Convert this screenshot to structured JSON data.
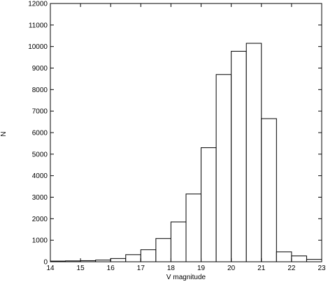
{
  "chart_data": {
    "type": "bar",
    "title": "",
    "xlabel": "V magnitude",
    "ylabel": "N",
    "xlim": [
      14,
      23
    ],
    "ylim": [
      0,
      12000
    ],
    "grid": false,
    "bin_width": 0.5,
    "bins": [
      {
        "x0": 14.0,
        "value": 30
      },
      {
        "x0": 14.5,
        "value": 40
      },
      {
        "x0": 15.0,
        "value": 50
      },
      {
        "x0": 15.5,
        "value": 80
      },
      {
        "x0": 16.0,
        "value": 150
      },
      {
        "x0": 16.5,
        "value": 330
      },
      {
        "x0": 17.0,
        "value": 560
      },
      {
        "x0": 17.5,
        "value": 1080
      },
      {
        "x0": 18.0,
        "value": 1850
      },
      {
        "x0": 18.5,
        "value": 3150
      },
      {
        "x0": 19.0,
        "value": 5300
      },
      {
        "x0": 19.5,
        "value": 8700
      },
      {
        "x0": 20.0,
        "value": 9780
      },
      {
        "x0": 20.5,
        "value": 10150
      },
      {
        "x0": 21.0,
        "value": 6650
      },
      {
        "x0": 21.5,
        "value": 460
      },
      {
        "x0": 22.0,
        "value": 270
      },
      {
        "x0": 22.5,
        "value": 110
      }
    ],
    "x_ticks": [
      "14",
      "15",
      "16",
      "17",
      "18",
      "19",
      "20",
      "21",
      "22",
      "23"
    ],
    "y_ticks": [
      "0",
      "1000",
      "2000",
      "3000",
      "4000",
      "5000",
      "6000",
      "7000",
      "8000",
      "9000",
      "10000",
      "11000",
      "12000"
    ]
  }
}
